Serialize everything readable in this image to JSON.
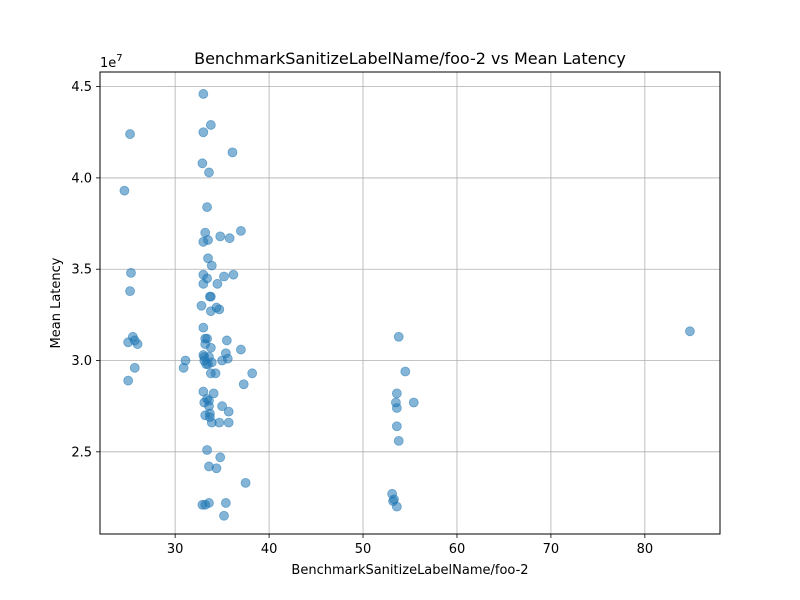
{
  "chart_data": {
    "type": "scatter",
    "title": "BenchmarkSanitizeLabelName/foo-2 vs Mean Latency",
    "xlabel": "BenchmarkSanitizeLabelName/foo-2",
    "ylabel": "Mean Latency",
    "y_offset_text": "1e7",
    "xlim": [
      22,
      88
    ],
    "ylim": [
      2.05,
      4.58
    ],
    "y_scale_factor": 10000000,
    "xticks": [
      30,
      40,
      50,
      60,
      70,
      80
    ],
    "xtick_labels": [
      "30",
      "40",
      "50",
      "60",
      "70",
      "80"
    ],
    "yticks": [
      2.5,
      3.0,
      3.5,
      4.0,
      4.5
    ],
    "ytick_labels": [
      "2.5",
      "3.0",
      "3.5",
      "4.0",
      "4.5"
    ],
    "grid": true,
    "marker_color": "#1f77b4",
    "marker_alpha": 0.55,
    "points": [
      {
        "x": 24.6,
        "y": 3.93
      },
      {
        "x": 25.2,
        "y": 4.24
      },
      {
        "x": 25.3,
        "y": 3.48
      },
      {
        "x": 25.2,
        "y": 3.38
      },
      {
        "x": 25.5,
        "y": 3.13
      },
      {
        "x": 25.0,
        "y": 3.1
      },
      {
        "x": 25.7,
        "y": 3.11
      },
      {
        "x": 26.0,
        "y": 3.09
      },
      {
        "x": 25.7,
        "y": 2.96
      },
      {
        "x": 25.0,
        "y": 2.89
      },
      {
        "x": 30.9,
        "y": 2.96
      },
      {
        "x": 31.1,
        "y": 3.0
      },
      {
        "x": 33.0,
        "y": 4.46
      },
      {
        "x": 33.8,
        "y": 4.29
      },
      {
        "x": 33.0,
        "y": 4.25
      },
      {
        "x": 36.1,
        "y": 4.14
      },
      {
        "x": 32.9,
        "y": 4.08
      },
      {
        "x": 33.6,
        "y": 4.03
      },
      {
        "x": 33.4,
        "y": 3.84
      },
      {
        "x": 37.0,
        "y": 3.71
      },
      {
        "x": 33.2,
        "y": 3.7
      },
      {
        "x": 34.8,
        "y": 3.68
      },
      {
        "x": 35.8,
        "y": 3.67
      },
      {
        "x": 33.0,
        "y": 3.65
      },
      {
        "x": 33.5,
        "y": 3.66
      },
      {
        "x": 33.5,
        "y": 3.56
      },
      {
        "x": 33.9,
        "y": 3.52
      },
      {
        "x": 33.0,
        "y": 3.47
      },
      {
        "x": 33.4,
        "y": 3.45
      },
      {
        "x": 35.2,
        "y": 3.46
      },
      {
        "x": 36.2,
        "y": 3.47
      },
      {
        "x": 33.0,
        "y": 3.42
      },
      {
        "x": 34.5,
        "y": 3.42
      },
      {
        "x": 33.7,
        "y": 3.35
      },
      {
        "x": 33.8,
        "y": 3.35
      },
      {
        "x": 32.8,
        "y": 3.3
      },
      {
        "x": 34.4,
        "y": 3.29
      },
      {
        "x": 34.7,
        "y": 3.28
      },
      {
        "x": 33.8,
        "y": 3.27
      },
      {
        "x": 33.0,
        "y": 3.18
      },
      {
        "x": 33.2,
        "y": 3.12
      },
      {
        "x": 33.4,
        "y": 3.12
      },
      {
        "x": 35.5,
        "y": 3.11
      },
      {
        "x": 33.2,
        "y": 3.09
      },
      {
        "x": 33.8,
        "y": 3.07
      },
      {
        "x": 37.0,
        "y": 3.06
      },
      {
        "x": 33.0,
        "y": 3.03
      },
      {
        "x": 33.1,
        "y": 3.02
      },
      {
        "x": 35.4,
        "y": 3.04
      },
      {
        "x": 33.6,
        "y": 3.02
      },
      {
        "x": 35.0,
        "y": 3.0
      },
      {
        "x": 35.6,
        "y": 3.01
      },
      {
        "x": 33.1,
        "y": 3.0
      },
      {
        "x": 33.3,
        "y": 2.98
      },
      {
        "x": 33.5,
        "y": 2.98
      },
      {
        "x": 33.9,
        "y": 2.99
      },
      {
        "x": 34.3,
        "y": 2.93
      },
      {
        "x": 33.8,
        "y": 2.93
      },
      {
        "x": 38.2,
        "y": 2.93
      },
      {
        "x": 37.3,
        "y": 2.87
      },
      {
        "x": 33.0,
        "y": 2.83
      },
      {
        "x": 34.1,
        "y": 2.82
      },
      {
        "x": 33.4,
        "y": 2.79
      },
      {
        "x": 33.6,
        "y": 2.78
      },
      {
        "x": 33.1,
        "y": 2.77
      },
      {
        "x": 33.6,
        "y": 2.75
      },
      {
        "x": 35.0,
        "y": 2.75
      },
      {
        "x": 35.7,
        "y": 2.72
      },
      {
        "x": 33.7,
        "y": 2.71
      },
      {
        "x": 33.2,
        "y": 2.7
      },
      {
        "x": 33.7,
        "y": 2.69
      },
      {
        "x": 33.9,
        "y": 2.66
      },
      {
        "x": 34.7,
        "y": 2.66
      },
      {
        "x": 35.7,
        "y": 2.66
      },
      {
        "x": 33.4,
        "y": 2.51
      },
      {
        "x": 34.8,
        "y": 2.47
      },
      {
        "x": 33.6,
        "y": 2.42
      },
      {
        "x": 34.4,
        "y": 2.41
      },
      {
        "x": 37.5,
        "y": 2.33
      },
      {
        "x": 35.4,
        "y": 2.22
      },
      {
        "x": 33.6,
        "y": 2.22
      },
      {
        "x": 32.9,
        "y": 2.21
      },
      {
        "x": 33.2,
        "y": 2.21
      },
      {
        "x": 35.2,
        "y": 2.15
      },
      {
        "x": 53.8,
        "y": 3.13
      },
      {
        "x": 54.5,
        "y": 2.94
      },
      {
        "x": 53.6,
        "y": 2.82
      },
      {
        "x": 53.5,
        "y": 2.77
      },
      {
        "x": 55.4,
        "y": 2.77
      },
      {
        "x": 53.6,
        "y": 2.74
      },
      {
        "x": 53.6,
        "y": 2.64
      },
      {
        "x": 53.8,
        "y": 2.56
      },
      {
        "x": 53.1,
        "y": 2.27
      },
      {
        "x": 53.3,
        "y": 2.24
      },
      {
        "x": 53.2,
        "y": 2.23
      },
      {
        "x": 53.6,
        "y": 2.2
      },
      {
        "x": 84.8,
        "y": 3.16
      }
    ]
  }
}
